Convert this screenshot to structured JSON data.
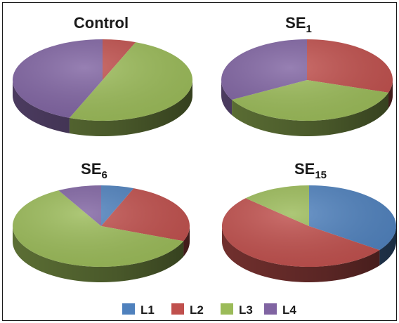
{
  "chart_data": {
    "type": "pie",
    "style": "3d",
    "legend_position": "bottom",
    "categories": [
      "L1",
      "L2",
      "L3",
      "L4"
    ],
    "colors": {
      "L1": "#4f81bd",
      "L2": "#c0504d",
      "L3": "#9bbb59",
      "L4": "#8064a2"
    },
    "charts": [
      {
        "title": "Control",
        "title_base": "Control",
        "title_sub": "",
        "values": [
          0,
          6,
          50,
          44
        ]
      },
      {
        "title": "SE1",
        "title_base": "SE",
        "title_sub": "1",
        "values": [
          0,
          30,
          37,
          33
        ]
      },
      {
        "title": "SE6",
        "title_base": "SE",
        "title_sub": "6",
        "values": [
          6,
          25,
          61,
          8
        ]
      },
      {
        "title": "SE15",
        "title_base": "SE",
        "title_sub": "15",
        "values": [
          35,
          52,
          13,
          0
        ]
      }
    ]
  }
}
